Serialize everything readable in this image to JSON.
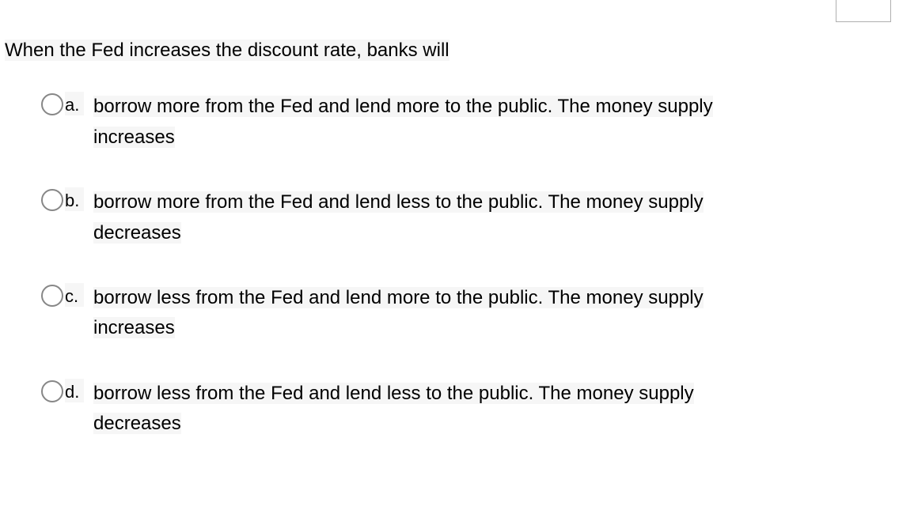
{
  "question": {
    "stem": "When the Fed increases the discount rate, banks will"
  },
  "options": [
    {
      "letter": "a.",
      "line1": "borrow more from the Fed and lend more to the public. The money supply",
      "line2": "increases"
    },
    {
      "letter": "b.",
      "line1": "borrow more from the Fed and lend less to the public. The money supply",
      "line2": "decreases"
    },
    {
      "letter": "c.",
      "line1": "borrow less from the Fed and lend more to the public. The money supply",
      "line2": "increases"
    },
    {
      "letter": "d.",
      "line1": "borrow less from the Fed and lend less to the public. The money supply",
      "line2": "decreases"
    }
  ],
  "styling": {
    "highlight_bg": "#f6f6f6",
    "radio_border": "#878787",
    "text_color": "#000000",
    "question_fontsize": 24,
    "option_fontsize": 24,
    "letter_fontsize": 22
  }
}
